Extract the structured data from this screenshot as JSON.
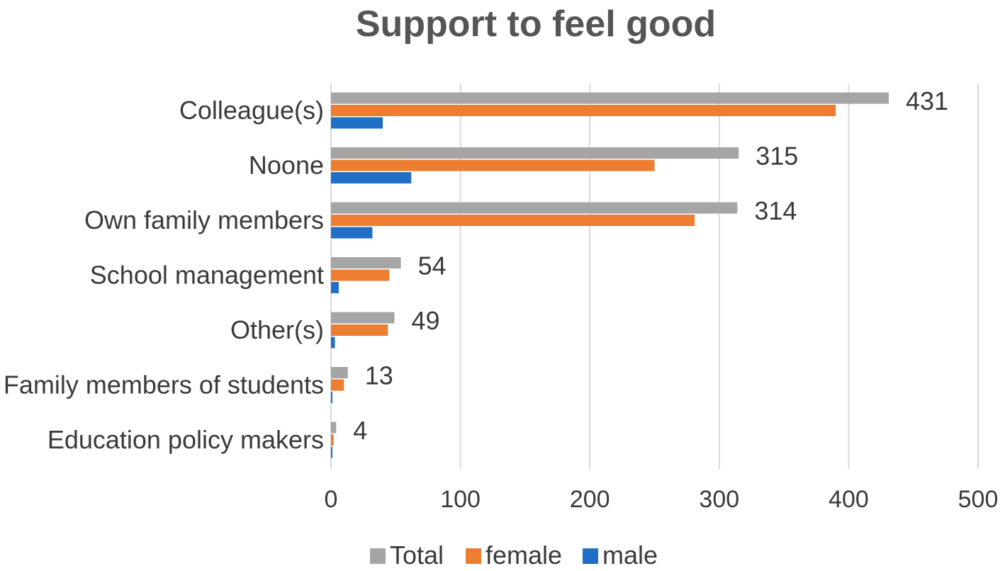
{
  "chart_data": {
    "type": "bar",
    "orientation": "horizontal",
    "title": "Support to feel good",
    "categories": [
      "Colleague(s)",
      "Noone",
      "Own family members",
      "School management",
      "Other(s)",
      "Family members of students",
      "Education policy makers"
    ],
    "series": [
      {
        "name": "Total",
        "color": "#a5a5a5",
        "values": [
          431,
          315,
          314,
          54,
          49,
          13,
          4
        ]
      },
      {
        "name": "female",
        "color": "#ed7d31",
        "values": [
          390,
          250,
          281,
          45,
          44,
          10,
          2
        ]
      },
      {
        "name": "male",
        "color": "#1f6fc6",
        "values": [
          40,
          62,
          32,
          6,
          3,
          1,
          1
        ]
      }
    ],
    "data_labels_series": "Total",
    "xlim": [
      0,
      500
    ],
    "xticks": [
      0,
      100,
      200,
      300,
      400,
      500
    ],
    "grid": true,
    "legend_position": "bottom"
  }
}
